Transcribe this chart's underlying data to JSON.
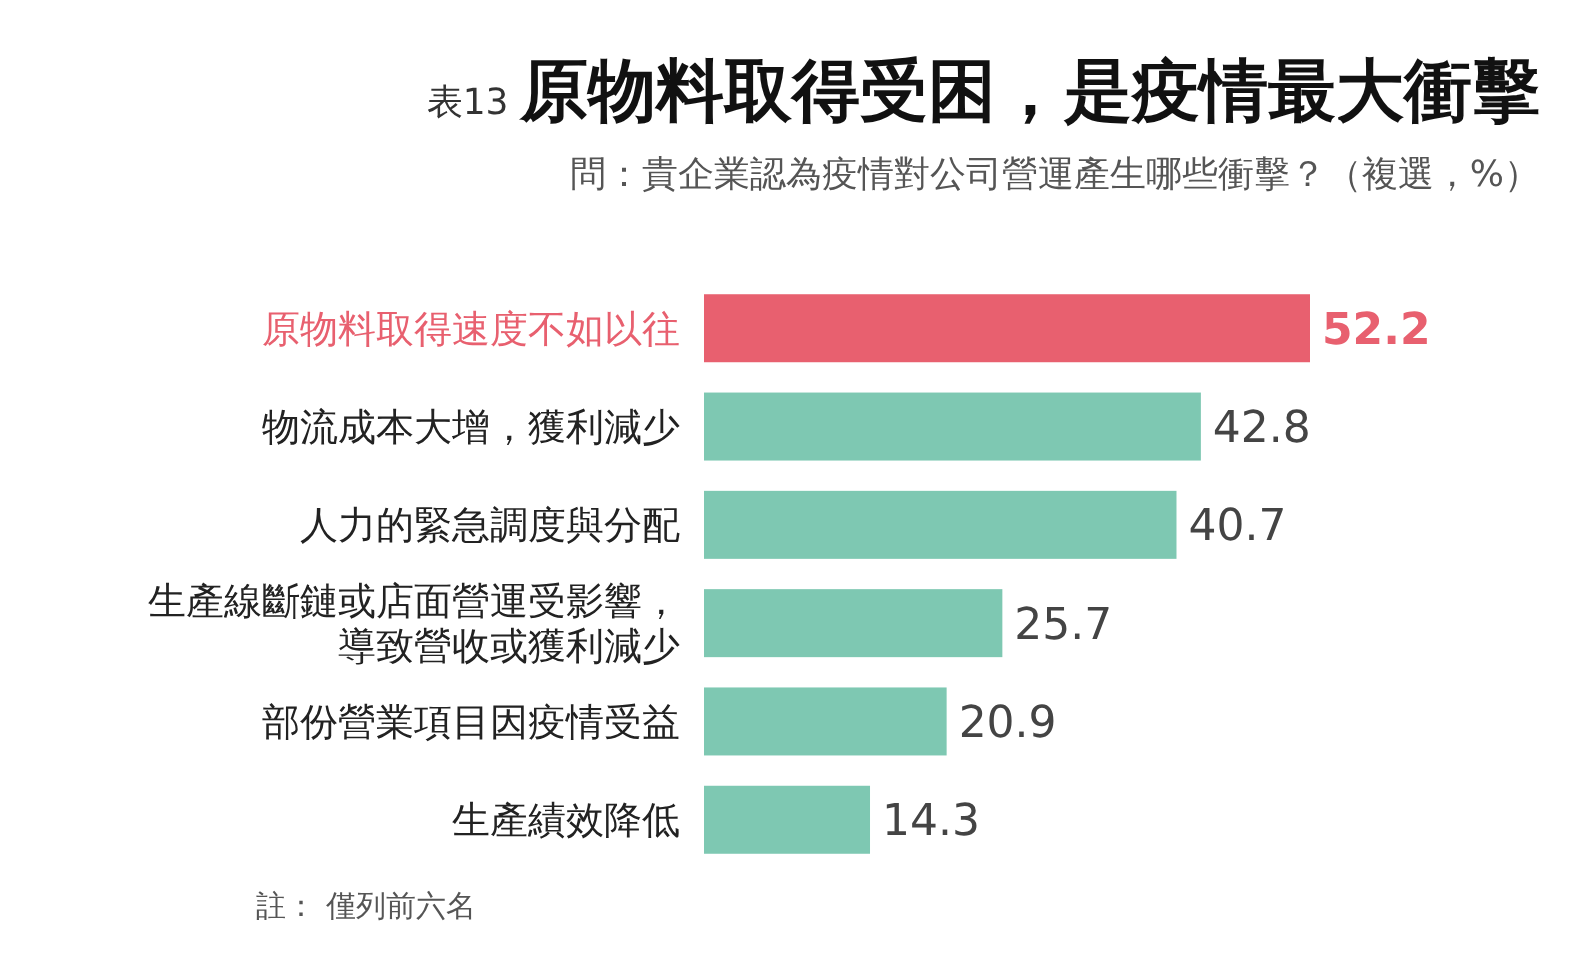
{
  "chart_data": {
    "type": "bar",
    "orientation": "horizontal",
    "title": "表13 原物料取得受困，是疫情最大衝擊",
    "subtitle": "問：貴企業認為疫情對公司營運產生哪些衝擊？（複選，%）",
    "categories": [
      "原物料取得速度不如以往",
      "物流成本大增，獲利減少",
      "人力的緊急調度與分配",
      "生產線斷鏈或店面營運受影響，導致營收或獲利減少",
      "部份營業項目因疫情受益",
      "生產績效降低"
    ],
    "values": [
      52.2,
      42.8,
      40.7,
      25.7,
      20.9,
      14.3
    ],
    "colors": [
      "#e8606f",
      "#7ec8b2",
      "#7ec8b2",
      "#7ec8b2",
      "#7ec8b2",
      "#7ec8b2"
    ],
    "data_labels": true,
    "annotations": [
      "註： 僅列前六名"
    ]
  }
}
